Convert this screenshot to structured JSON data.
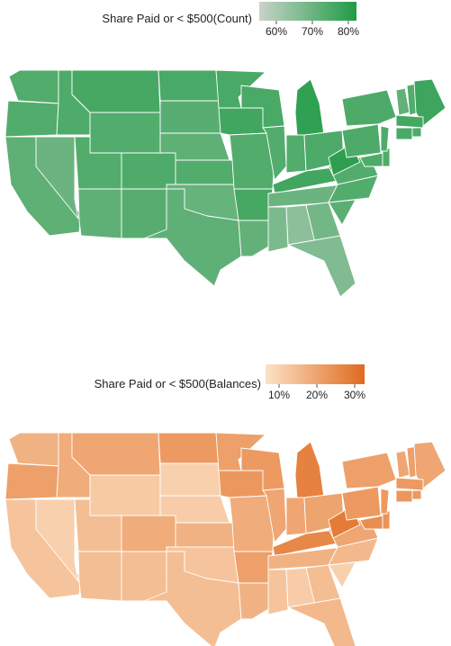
{
  "maps": [
    {
      "id": "count",
      "legend": {
        "title": "Share Paid or < $500(Count)",
        "ticks": [
          "60%",
          "70%",
          "80%"
        ],
        "gradient": [
          "#c8d3c8",
          "#1f9b45"
        ]
      },
      "shading": {
        "WA": 0.7,
        "OR": 0.7,
        "CA": 0.63,
        "NV": 0.55,
        "ID": 0.72,
        "MT": 0.77,
        "WY": 0.7,
        "UT": 0.7,
        "AZ": 0.62,
        "CO": 0.72,
        "NM": 0.67,
        "ND": 0.75,
        "SD": 0.66,
        "NE": 0.63,
        "KS": 0.7,
        "OK": 0.58,
        "TX": 0.62,
        "MN": 0.75,
        "IA": 0.8,
        "MO": 0.7,
        "AR": 0.77,
        "LA": 0.6,
        "WI": 0.75,
        "IL": 0.7,
        "MI": 0.9,
        "IN": 0.7,
        "OH": 0.73,
        "KY": 0.8,
        "TN": 0.55,
        "MS": 0.45,
        "AL": 0.35,
        "GA": 0.5,
        "FL": 0.42,
        "SC": 0.65,
        "NC": 0.7,
        "VA": 0.7,
        "WV": 0.92,
        "PA": 0.73,
        "NY": 0.73,
        "MD": 0.72,
        "DE": 0.72,
        "NJ": 0.72,
        "VT": 0.6,
        "NH": 0.7,
        "ME": 0.82,
        "MA": 0.78,
        "CT": 0.75,
        "RI": 0.72
      }
    },
    {
      "id": "balances",
      "legend": {
        "title": "Share Paid or < $500(Balances)",
        "ticks": [
          "10%",
          "20%",
          "30%"
        ],
        "gradient": [
          "#fde2c6",
          "#e06a1e"
        ]
      },
      "shading": {
        "WA": 0.4,
        "OR": 0.55,
        "CA": 0.25,
        "NV": 0.15,
        "ID": 0.45,
        "MT": 0.5,
        "WY": 0.2,
        "UT": 0.3,
        "AZ": 0.3,
        "CO": 0.45,
        "NM": 0.3,
        "ND": 0.6,
        "SD": 0.15,
        "NE": 0.18,
        "KS": 0.4,
        "OK": 0.25,
        "TX": 0.3,
        "MN": 0.55,
        "IA": 0.62,
        "MO": 0.45,
        "AR": 0.55,
        "LA": 0.4,
        "WI": 0.6,
        "IL": 0.5,
        "MI": 0.8,
        "IN": 0.5,
        "OH": 0.52,
        "KY": 0.75,
        "TN": 0.4,
        "MS": 0.25,
        "AL": 0.18,
        "GA": 0.3,
        "FL": 0.35,
        "SC": 0.15,
        "NC": 0.35,
        "VA": 0.5,
        "WV": 0.85,
        "PA": 0.6,
        "NY": 0.55,
        "MD": 0.7,
        "DE": 0.65,
        "NJ": 0.6,
        "VT": 0.5,
        "NH": 0.55,
        "ME": 0.5,
        "MA": 0.6,
        "CT": 0.62,
        "RI": 0.6
      }
    }
  ]
}
